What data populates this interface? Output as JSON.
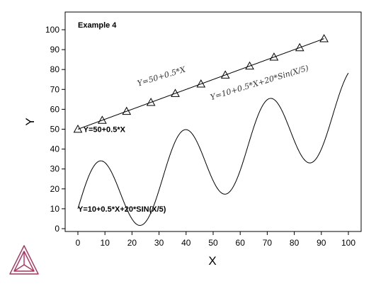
{
  "chart_data": {
    "type": "line",
    "title": "Example 4",
    "xlabel": "X",
    "ylabel": "Y",
    "xlim": [
      0,
      100
    ],
    "ylim": [
      0,
      100
    ],
    "xticks": [
      0,
      10,
      20,
      30,
      40,
      50,
      60,
      70,
      80,
      90,
      100
    ],
    "yticks": [
      0,
      10,
      20,
      30,
      40,
      50,
      60,
      70,
      80,
      90,
      100
    ],
    "grid": false,
    "series": [
      {
        "name": "Y=50+0.5*X",
        "expression": "50+0.5*x",
        "x_range": [
          0,
          91
        ],
        "color": "#000000",
        "marker": "triangle-open",
        "marker_x": [
          0,
          9,
          18,
          27,
          36,
          45.5,
          54.5,
          63.5,
          72.5,
          82,
          91
        ],
        "marker_y": [
          50,
          54.5,
          59,
          63.5,
          68,
          72.75,
          77.25,
          81.75,
          86.25,
          91,
          95.5
        ]
      },
      {
        "name": "Y=10+0.5*X+20*SIN(X/5)",
        "expression": "10+0.5*x+20*sin(x/5)",
        "x_range": [
          0,
          100
        ],
        "color": "#000000",
        "marker": "none"
      }
    ],
    "annotations": [
      {
        "text": "Y=50+0.5*X",
        "style": "bold",
        "at": [
          2,
          50
        ]
      },
      {
        "text": "Y=10+0.5*X+20*SIN(X/5)",
        "style": "bold",
        "at": [
          0,
          10
        ]
      },
      {
        "text": "Y=50+0.5*X",
        "style": "italic",
        "at": [
          22,
          73
        ],
        "angle_deg": -17
      },
      {
        "text": "Y=10+0.5*X+20*Sin(X/5)",
        "style": "italic",
        "at": [
          49,
          66
        ],
        "angle_deg": -17
      }
    ]
  },
  "logo": {
    "name": "thermo-calc-logo-icon",
    "color": "#b0305a"
  }
}
